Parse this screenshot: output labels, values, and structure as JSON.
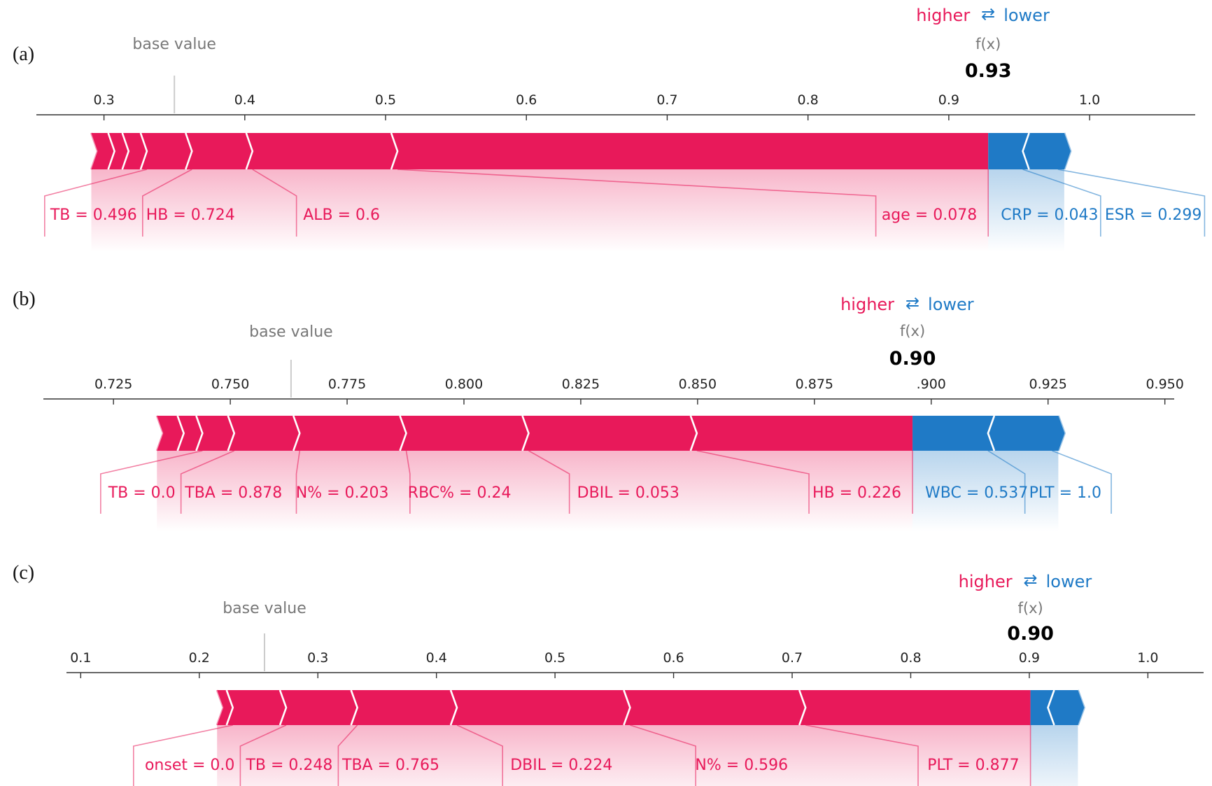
{
  "colors": {
    "pos": "#e8195a",
    "neg": "#1f7ac6",
    "base": "#777777"
  },
  "legend": {
    "higher": "higher",
    "lower": "lower",
    "arrows": "⇄"
  },
  "chart_data": [
    {
      "type": "force",
      "panel_label": "(a)",
      "fx_label": "f(x)",
      "fx_value": "0.93",
      "base_label": "base value",
      "base_value": 0.35,
      "f_x": 0.928,
      "xlim": [
        0.252,
        1.075
      ],
      "ticks": [
        0.3,
        0.4,
        0.5,
        0.6,
        0.7,
        0.8,
        0.9,
        1.0
      ],
      "tick_labels": [
        "0.3",
        "0.4",
        "0.5",
        "0.6",
        "0.7",
        "0.8",
        "0.9",
        "1.0"
      ],
      "positive": [
        {
          "label": "age = 0.078",
          "contribution": 0.424
        },
        {
          "label": "ALB = 0.6",
          "contribution": 0.103
        },
        {
          "label": "HB = 0.724",
          "contribution": 0.043
        },
        {
          "label": "TB = 0.496",
          "contribution": 0.032
        },
        {
          "label": "",
          "contribution": 0.013
        },
        {
          "label": "",
          "contribution": 0.01
        },
        {
          "label": "",
          "contribution": 0.012
        }
      ],
      "negative": [
        {
          "label": "CRP = 0.043",
          "contribution": 0.029
        },
        {
          "label": "ESR = 0.299",
          "contribution": 0.025
        }
      ]
    },
    {
      "type": "force",
      "panel_label": "(b)",
      "fx_label": "f(x)",
      "fx_value": "0.90",
      "base_label": "base value",
      "base_value": 0.763,
      "f_x": 0.896,
      "xlim": [
        0.71,
        0.952
      ],
      "ticks": [
        0.725,
        0.75,
        0.775,
        0.8,
        0.825,
        0.85,
        0.875,
        0.9,
        0.925,
        0.95
      ],
      "tick_labels": [
        "0.725",
        "0.750",
        "0.775",
        "0.800",
        "0.825",
        "0.850",
        "0.875",
        ".900",
        "0.925",
        "0.950"
      ],
      "positive": [
        {
          "label": "HB = 0.226",
          "contribution": 0.0475
        },
        {
          "label": "DBIL = 0.053",
          "contribution": 0.036
        },
        {
          "label": "RBC% = 0.24",
          "contribution": 0.0262
        },
        {
          "label": "N% = 0.203",
          "contribution": 0.0228
        },
        {
          "label": "TBA = 0.878",
          "contribution": 0.014
        },
        {
          "label": "TB = 0.0",
          "contribution": 0.0068
        },
        {
          "label": "",
          "contribution": 0.004
        },
        {
          "label": "",
          "contribution": 0.0044
        }
      ],
      "negative": [
        {
          "label": "WBC = 0.537",
          "contribution": 0.0175
        },
        {
          "label": "PLT = 1.0",
          "contribution": 0.0137
        }
      ]
    },
    {
      "type": "force",
      "panel_label": "(c)",
      "fx_label": "f(x)",
      "fx_value": "0.90",
      "base_label": "base value",
      "base_value": 0.255,
      "f_x": 0.901,
      "xlim": [
        0.088,
        1.047
      ],
      "ticks": [
        0.1,
        0.2,
        0.3,
        0.4,
        0.5,
        0.6,
        0.7,
        0.8,
        0.9,
        1.0
      ],
      "tick_labels": [
        "0.1",
        "0.2",
        "0.3",
        "0.4",
        "0.5",
        "0.6",
        "0.7",
        "0.8",
        "0.9",
        "1.0"
      ],
      "positive": [
        {
          "label": "PLT = 0.877",
          "contribution": 0.195
        },
        {
          "label": "N% = 0.596",
          "contribution": 0.148
        },
        {
          "label": "DBIL = 0.224",
          "contribution": 0.146
        },
        {
          "label": "TBA = 0.765",
          "contribution": 0.084
        },
        {
          "label": "TB = 0.248",
          "contribution": 0.06
        },
        {
          "label": "onset = 0.0",
          "contribution": 0.045
        },
        {
          "label": "",
          "contribution": 0.008
        }
      ],
      "negative": [
        {
          "label": "",
          "contribution": 0.02
        },
        {
          "label": "",
          "contribution": 0.02
        }
      ]
    }
  ]
}
